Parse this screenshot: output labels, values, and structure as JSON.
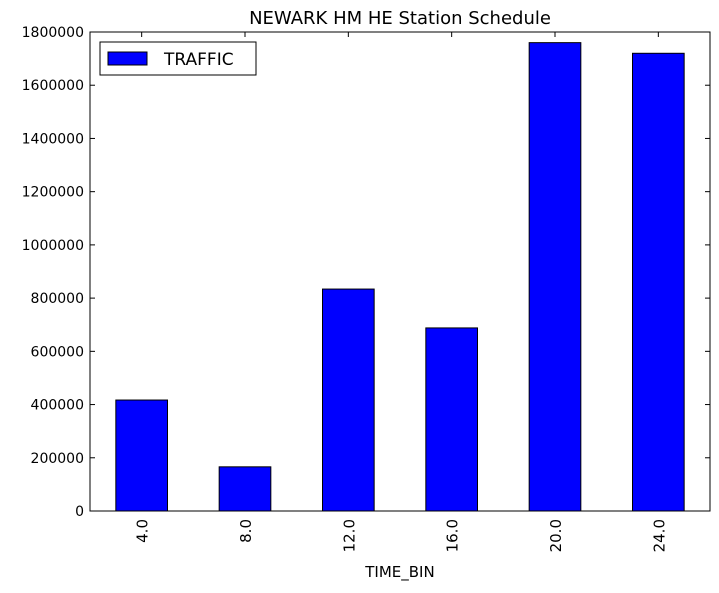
{
  "chart_data": {
    "type": "bar",
    "title": "NEWARK HM HE Station Schedule",
    "xlabel": "TIME_BIN",
    "ylabel": "",
    "categories": [
      "4.0",
      "8.0",
      "12.0",
      "16.0",
      "20.0",
      "24.0"
    ],
    "series": [
      {
        "name": "TRAFFIC",
        "color": "#0000ff",
        "values": [
          417000,
          166000,
          834000,
          688000,
          1760000,
          1720000
        ]
      }
    ],
    "ylim": [
      0,
      1800000
    ],
    "yticks": [
      0,
      200000,
      400000,
      600000,
      800000,
      1000000,
      1200000,
      1400000,
      1600000,
      1800000
    ],
    "ytick_labels": [
      "0",
      "200000",
      "400000",
      "600000",
      "800000",
      "1000000",
      "1200000",
      "1400000",
      "1600000",
      "1800000"
    ],
    "grid": false,
    "legend_position": "top-left"
  }
}
